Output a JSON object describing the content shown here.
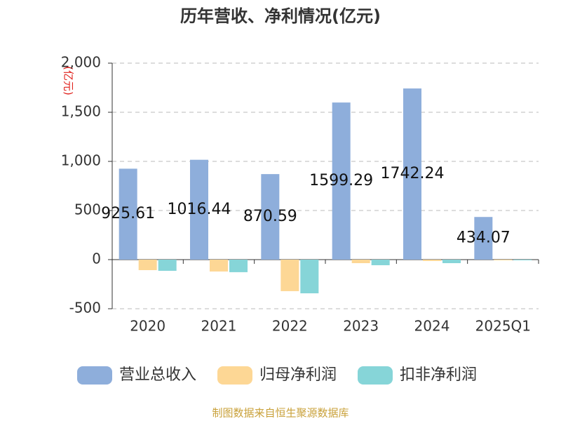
{
  "chart_data": {
    "type": "bar",
    "title": "历年营收、净利情况(亿元)",
    "y_axis_label": "(亿元)",
    "categories": [
      "2020",
      "2021",
      "2022",
      "2023",
      "2024",
      "2025Q1"
    ],
    "series": [
      {
        "name": "营业总收入",
        "color": "#8eaedb",
        "values": [
          925.61,
          1016.44,
          870.59,
          1599.29,
          1742.24,
          434.07
        ],
        "data_labels": true
      },
      {
        "name": "归母净利润",
        "color": "#fdd795",
        "values": [
          -107,
          -121,
          -321,
          -36,
          -14,
          -7
        ]
      },
      {
        "name": "扣非净利润",
        "color": "#86d5d8",
        "values": [
          -114,
          -128,
          -343,
          -57,
          -36,
          -7
        ]
      }
    ],
    "ylim": [
      -500,
      2000
    ],
    "yticks": [
      -500,
      0,
      500,
      {
        "value": 1000,
        "label": "1,000"
      },
      {
        "value": 1500,
        "label": "1,500"
      },
      {
        "value": 2000,
        "label": "2,000"
      }
    ],
    "grid": true,
    "source": "制图数据来自恒生聚源数据库"
  }
}
